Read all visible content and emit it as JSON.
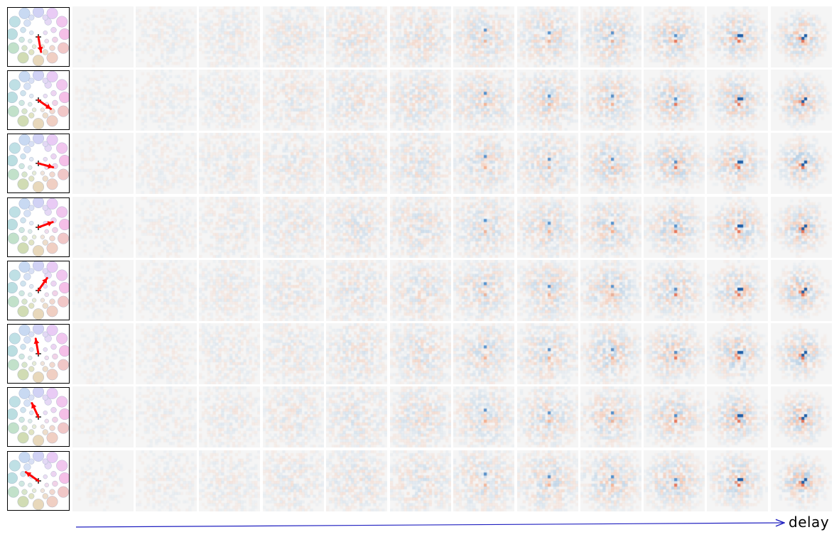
{
  "figure": {
    "axis_label": "delay",
    "rows": 8,
    "delay_columns": 12,
    "direction_angles_deg": [
      -80,
      -35,
      -15,
      20,
      55,
      100,
      115,
      145
    ],
    "colors": {
      "positive": "#fdd0b8",
      "strong_positive": "#e05a3a",
      "negative": "#cfe3f2",
      "strong_negative": "#1f5fa8",
      "background": "#f5f5f5",
      "arrow": "#ff0000",
      "axis_arrow": "#2020c0"
    }
  }
}
